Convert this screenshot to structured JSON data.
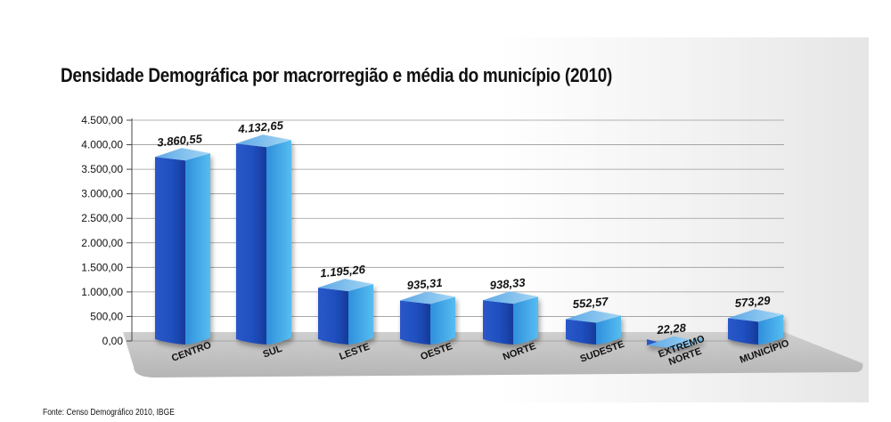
{
  "title": "Densidade Demográfica por macrorregião e média do município (2010)",
  "source": "Fonte: Censo Demográfico 2010, IBGE",
  "chart_data": {
    "type": "bar",
    "title": "Densidade Demográfica por macrorregião e média do município (2010)",
    "categories": [
      "CENTRO",
      "SUL",
      "LESTE",
      "OESTE",
      "NORTE",
      "SUDESTE",
      "EXTREMO NORTE",
      "MUNICÍPIO"
    ],
    "values": [
      3860.55,
      4132.65,
      1195.26,
      935.31,
      938.33,
      552.57,
      22.28,
      573.29
    ],
    "value_labels": [
      "3.860,55",
      "4.132,65",
      "1.195,26",
      "935,31",
      "938,33",
      "552,57",
      "22,28",
      "573,29"
    ],
    "y_ticks": [
      "0,00",
      "500,00",
      "1.000,00",
      "1.500,00",
      "2.000,00",
      "2.500,00",
      "3.000,00",
      "3.500,00",
      "4.000,00",
      "4.500,00"
    ],
    "ylim": [
      0,
      4500
    ],
    "xlabel": "",
    "ylabel": "",
    "grid": true,
    "colors": {
      "bar_front": "#1f4fbf",
      "bar_side": "#39a8ea",
      "bar_top": "#7fc4ef",
      "floor": "#c4c4c4"
    }
  }
}
